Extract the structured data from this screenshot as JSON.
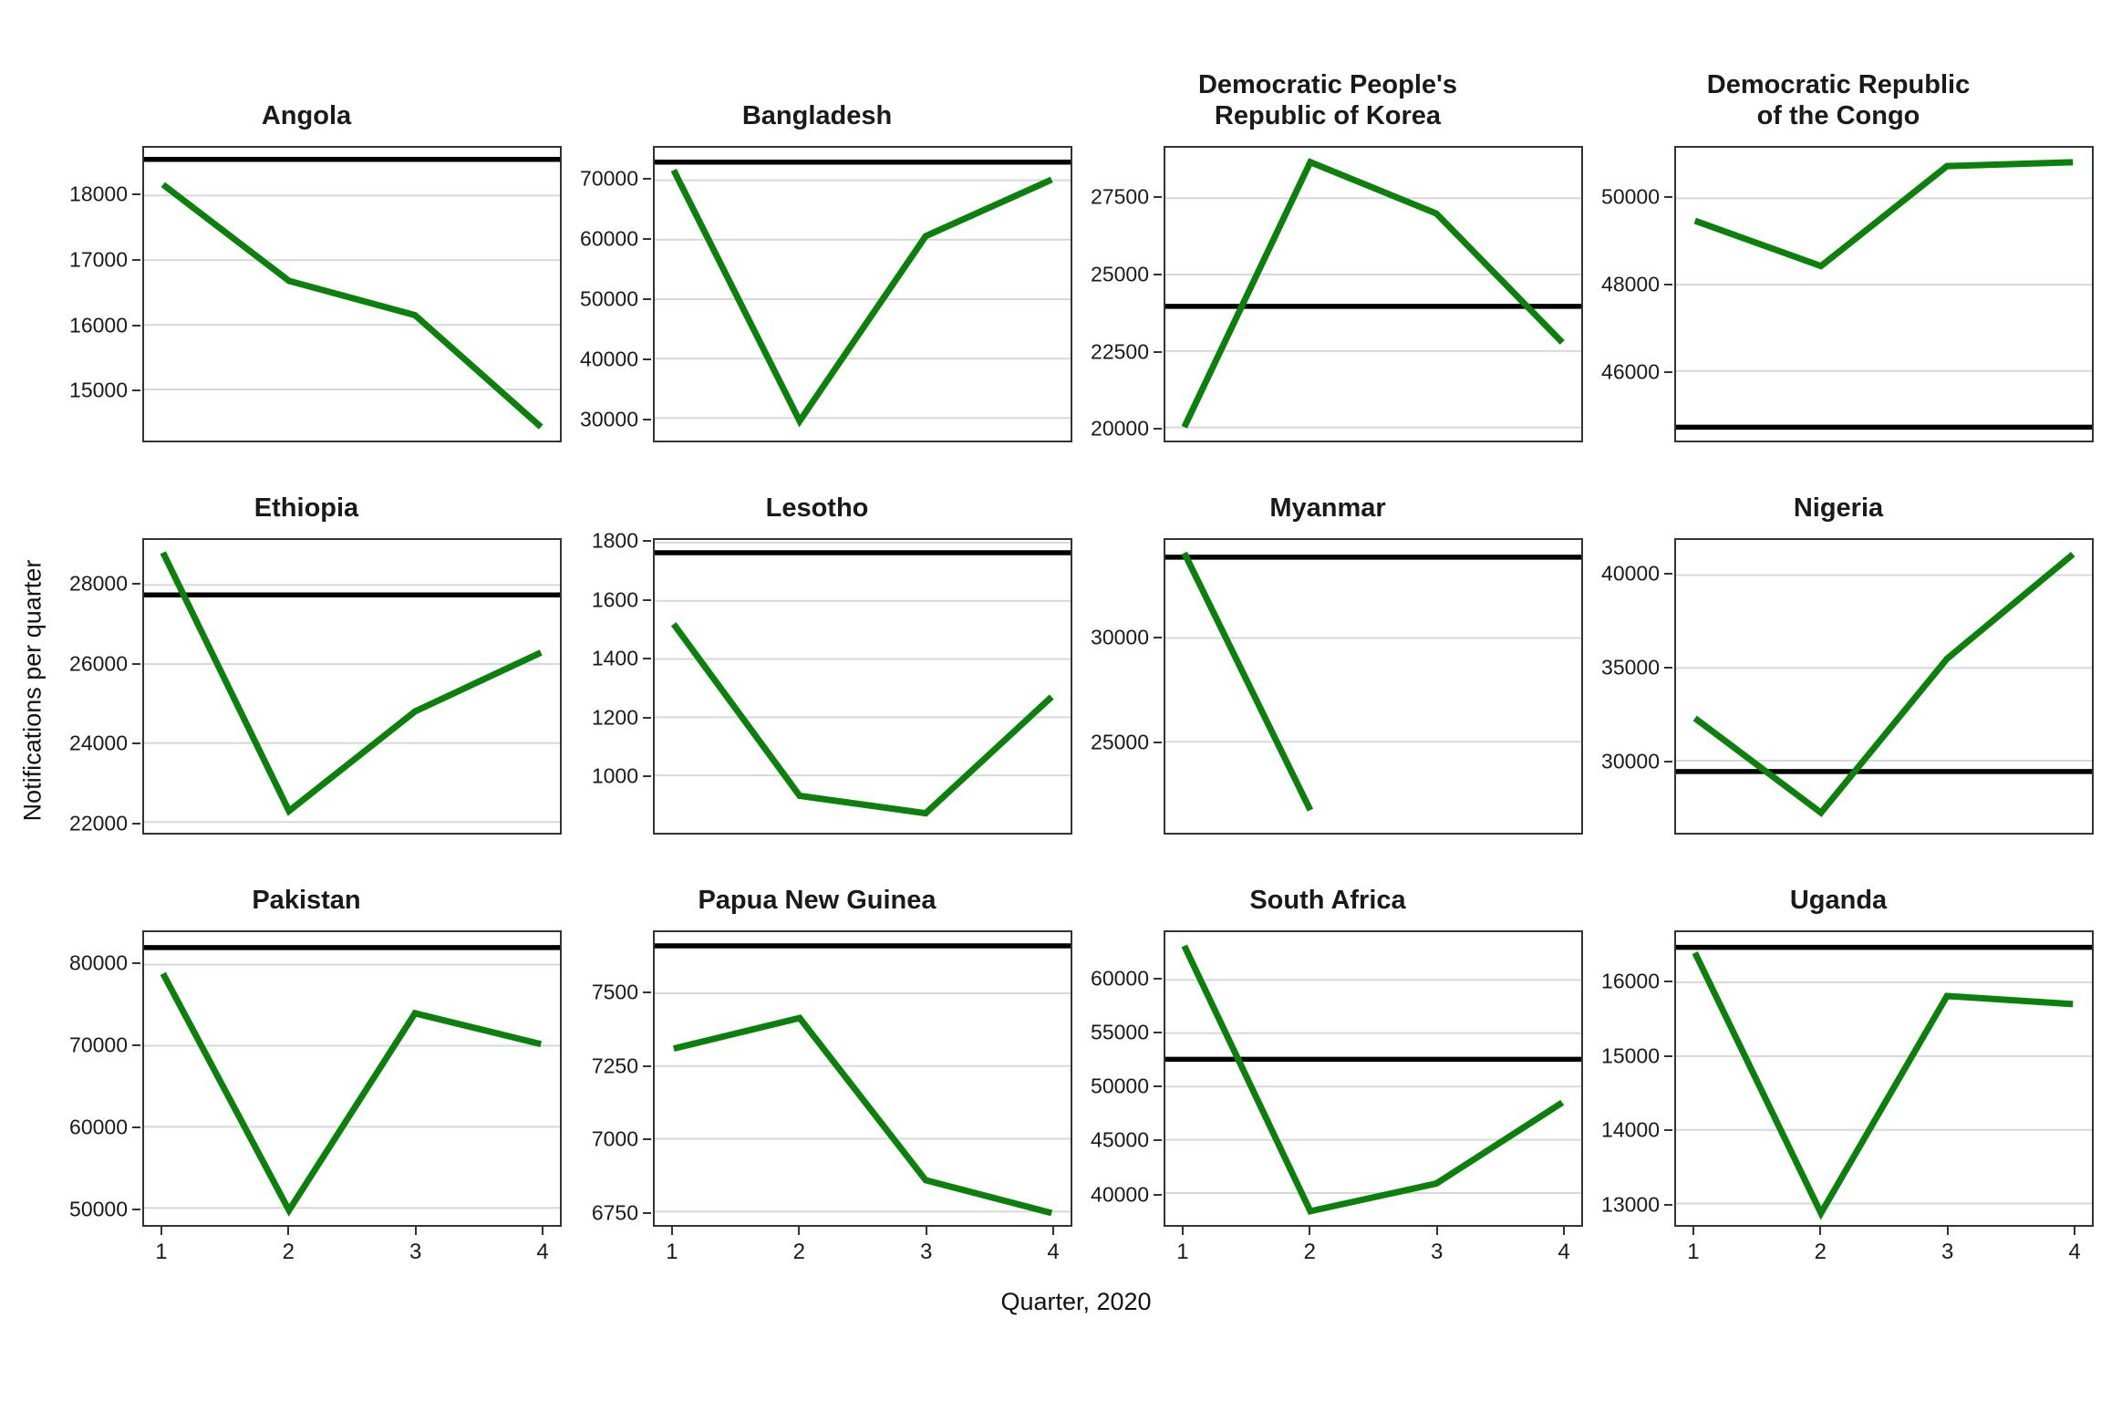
{
  "figure": {
    "x_axis_title": "Quarter, 2020",
    "y_axis_title": "Notifications per quarter",
    "x_ticks": [
      "1",
      "2",
      "3",
      "4"
    ],
    "colors": {
      "trend_line": "#0b800b",
      "reference_line": "#000000",
      "gridline": "#d8d8d8",
      "panel_border": "#333333",
      "text": "#1a1a1a"
    }
  },
  "chart_data": {
    "type": "line",
    "x": [
      1,
      2,
      3,
      4
    ],
    "xlabel": "Quarter, 2020",
    "ylabel": "Notifications per quarter",
    "grid": "horizontal-only",
    "legend": "none",
    "facets": [
      {
        "slug": "angola",
        "title": "Angola",
        "y_ticks": [
          15000,
          16000,
          17000,
          18000
        ],
        "ylim": [
          14210,
          18740
        ],
        "reference_line": 18560,
        "values": [
          18170,
          16680,
          16150,
          14420
        ]
      },
      {
        "slug": "bangladesh",
        "title": "Bangladesh",
        "y_ticks": [
          30000,
          40000,
          50000,
          60000,
          70000
        ],
        "ylim": [
          26210,
          75470
        ],
        "reference_line": 73050,
        "values": [
          71700,
          29500,
          60600,
          70100
        ]
      },
      {
        "slug": "dpr-korea",
        "title": "Democratic People's\nRepublic of Korea",
        "y_ticks": [
          20000,
          22500,
          25000,
          27500
        ],
        "ylim": [
          19570,
          29150
        ],
        "reference_line": 23960,
        "values": [
          20010,
          28680,
          27000,
          22780
        ]
      },
      {
        "slug": "dr-congo",
        "title": "Democratic Republic\nof the Congo",
        "y_ticks": [
          46000,
          48000,
          50000
        ],
        "ylim": [
          44390,
          51170
        ],
        "reference_line": 44700,
        "values": [
          49480,
          48430,
          50745,
          50835
        ]
      },
      {
        "slug": "ethiopia",
        "title": "Ethiopia",
        "y_ticks": [
          22000,
          24000,
          26000,
          28000
        ],
        "ylim": [
          21730,
          29140
        ],
        "reference_line": 27750,
        "values": [
          28820,
          22280,
          24800,
          26290
        ]
      },
      {
        "slug": "lesotho",
        "title": "Lesotho",
        "y_ticks": [
          1000,
          1200,
          1400,
          1600,
          1800
        ],
        "ylim": [
          803,
          1809
        ],
        "reference_line": 1765,
        "values": [
          1520,
          930,
          870,
          1270
        ]
      },
      {
        "slug": "myanmar",
        "title": "Myanmar",
        "y_ticks": [
          25000,
          30000
        ],
        "ylim": [
          20610,
          34730
        ],
        "reference_line": 33900,
        "values": [
          34100,
          21700,
          null,
          null
        ]
      },
      {
        "slug": "nigeria",
        "title": "Nigeria",
        "y_ticks": [
          30000,
          35000,
          40000
        ],
        "ylim": [
          26120,
          41890
        ],
        "reference_line": 29420,
        "values": [
          32290,
          27200,
          35490,
          41120
        ]
      },
      {
        "slug": "pakistan",
        "title": "Pakistan",
        "y_ticks": [
          50000,
          60000,
          70000,
          80000
        ],
        "ylim": [
          47900,
          84000
        ],
        "reference_line": 82100,
        "values": [
          78900,
          49700,
          74000,
          70200
        ]
      },
      {
        "slug": "papua-new-guinea",
        "title": "Papua New Guinea",
        "y_ticks": [
          6750,
          7000,
          7250,
          7500
        ],
        "ylim": [
          6704,
          7710
        ],
        "reference_line": 7663,
        "values": [
          7310,
          7415,
          6858,
          6745
        ]
      },
      {
        "slug": "south-africa",
        "title": "South Africa",
        "y_ticks": [
          40000,
          45000,
          50000,
          55000,
          60000
        ],
        "ylim": [
          37010,
          64480
        ],
        "reference_line": 52550,
        "values": [
          63200,
          38300,
          40900,
          48490
        ]
      },
      {
        "slug": "uganda",
        "title": "Uganda",
        "y_ticks": [
          13000,
          14000,
          15000,
          16000
        ],
        "ylim": [
          12710,
          16680
        ],
        "reference_line": 16475,
        "values": [
          16400,
          12870,
          15815,
          15705
        ]
      }
    ]
  }
}
